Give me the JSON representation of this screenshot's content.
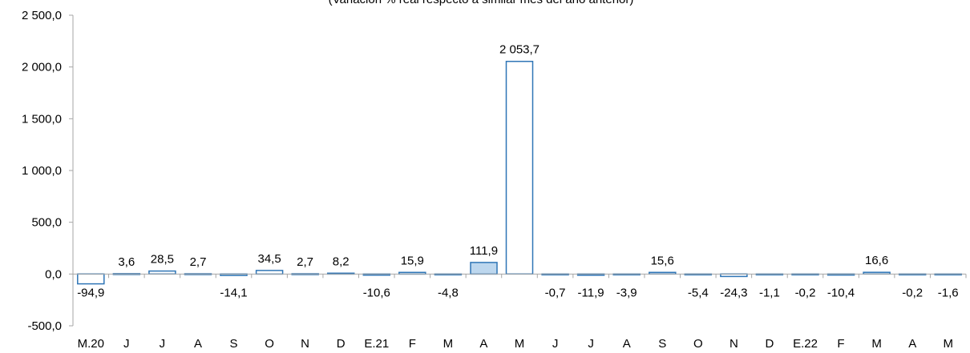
{
  "chart_data": {
    "type": "bar",
    "title": "(Variación % real respecto a similar mes del año anterior)",
    "categories": [
      "M.20",
      "J",
      "J",
      "A",
      "S",
      "O",
      "N",
      "D",
      "E.21",
      "F",
      "M",
      "A",
      "M",
      "J",
      "J",
      "A",
      "S",
      "O",
      "N",
      "D",
      "E.22",
      "F",
      "M",
      "A",
      "M"
    ],
    "values": [
      -94.9,
      3.6,
      28.5,
      2.7,
      -14.1,
      34.5,
      2.7,
      8.2,
      -10.6,
      15.9,
      -4.8,
      111.9,
      2053.7,
      -0.7,
      -11.9,
      -3.9,
      15.6,
      -5.4,
      -24.3,
      -1.1,
      -0.2,
      -10.4,
      16.6,
      -0.2,
      -1.6
    ],
    "data_labels": [
      "-94,9",
      "3,6",
      "28,5",
      "2,7",
      "-14,1",
      "34,5",
      "2,7",
      "8,2",
      "-10,6",
      "15,9",
      "-4,8",
      "111,9",
      "2 053,7",
      "-0,7",
      "-11,9",
      "-3,9",
      "15,6",
      "-5,4",
      "-24,3",
      "-1,1",
      "-0,2",
      "-10,4",
      "16,6",
      "-0,2",
      "-1,6"
    ],
    "yticks": [
      -500,
      0,
      500,
      1000,
      1500,
      2000,
      2500
    ],
    "ytick_labels": [
      "-500,0",
      "0,0",
      "500,0",
      "1 000,0",
      "1 500,0",
      "2 000,0",
      "2 500,0"
    ],
    "ylim": [
      -500,
      2500
    ],
    "grid": false,
    "legend": "none",
    "colors": {
      "bar_edge": "#2E75B6",
      "bar_fill": "#FFFFFF",
      "highlight_fill": "#BDD7EE",
      "axis": "#A6A6A6"
    },
    "highlight_index": 11
  }
}
